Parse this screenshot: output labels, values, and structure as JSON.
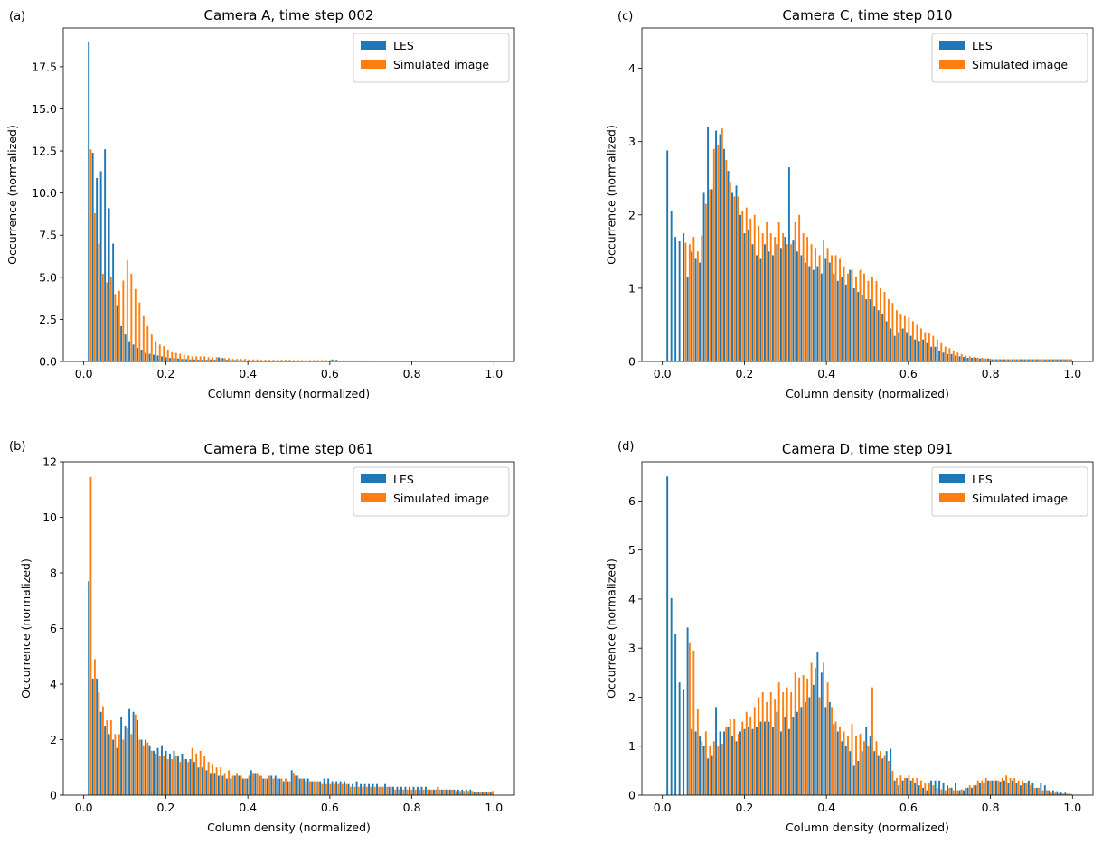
{
  "colors": {
    "les": "#1f77b4",
    "sim": "#ff7f0e",
    "axis": "#000000"
  },
  "chart_data": [
    {
      "type": "bar",
      "panel_label": "(a)",
      "title": "Camera A, time step 002",
      "xlabel": "Column density (normalized)",
      "ylabel": "Occurrence (normalized)",
      "xlim": [
        -0.05,
        1.05
      ],
      "ylim": [
        0,
        19.8
      ],
      "xticks": [
        0.0,
        0.2,
        0.4,
        0.6,
        0.8,
        1.0
      ],
      "xtick_labels": [
        "0.0",
        "0.2",
        "0.4",
        "0.6",
        "0.8",
        "1.0"
      ],
      "yticks": [
        0,
        2.5,
        5.0,
        7.5,
        10.0,
        12.5,
        15.0,
        17.5
      ],
      "ytick_labels": [
        "0.0",
        "2.5",
        "5.0",
        "7.5",
        "10.0",
        "12.5",
        "15.0",
        "17.5"
      ],
      "legend_position": "top-right",
      "x_start": 0.01,
      "x_end": 1.0,
      "bins": 100,
      "series": [
        {
          "name": "LES",
          "values": [
            19.0,
            12.4,
            10.9,
            11.3,
            12.6,
            9.1,
            7.0,
            3.3,
            2.1,
            1.6,
            1.2,
            1.0,
            0.8,
            0.7,
            0.5,
            0.45,
            0.4,
            0.35,
            0.3,
            0.25,
            0.2,
            0.2,
            0.18,
            0.15,
            0.14,
            0.12,
            0.12,
            0.11,
            0.1,
            0.1,
            0.12,
            0.1,
            0.25,
            0.2,
            0.1,
            0.08,
            0.08,
            0.07,
            0.07,
            0.06,
            0.06,
            0.06,
            0.05,
            0.05,
            0.05,
            0.04,
            0.04,
            0.04,
            0.04,
            0.03,
            0.03,
            0.03,
            0.03,
            0.03,
            0.03,
            0.03,
            0.03,
            0.02,
            0.02,
            0.02,
            0.12,
            0.1,
            0.02,
            0.02,
            0.02,
            0.02,
            0.02,
            0.02,
            0.02,
            0.02,
            0.02,
            0.02,
            0.02,
            0.02,
            0.02,
            0.02,
            0.02,
            0.02,
            0.02,
            0.02,
            0.02,
            0.02,
            0.02,
            0.02,
            0.02,
            0.02,
            0.02,
            0.02,
            0.02,
            0.02,
            0.02,
            0.02,
            0.02,
            0.02,
            0.02,
            0.02,
            0.02,
            0.02,
            0.02,
            0.02
          ]
        },
        {
          "name": "Simulated image",
          "values": [
            12.6,
            8.8,
            7.0,
            5.2,
            4.7,
            5.0,
            4.0,
            4.2,
            4.8,
            6.0,
            5.2,
            4.3,
            3.5,
            2.7,
            2.1,
            1.6,
            1.2,
            1.0,
            0.9,
            0.7,
            0.6,
            0.5,
            0.45,
            0.4,
            0.35,
            0.3,
            0.3,
            0.3,
            0.3,
            0.25,
            0.25,
            0.25,
            0.2,
            0.2,
            0.2,
            0.15,
            0.15,
            0.15,
            0.15,
            0.12,
            0.12,
            0.12,
            0.1,
            0.1,
            0.1,
            0.1,
            0.1,
            0.1,
            0.1,
            0.1,
            0.08,
            0.08,
            0.08,
            0.08,
            0.08,
            0.08,
            0.08,
            0.08,
            0.08,
            0.08,
            0.06,
            0.06,
            0.06,
            0.06,
            0.06,
            0.06,
            0.06,
            0.06,
            0.06,
            0.06,
            0.05,
            0.05,
            0.05,
            0.05,
            0.05,
            0.05,
            0.05,
            0.05,
            0.05,
            0.05,
            0.05,
            0.05,
            0.05,
            0.05,
            0.05,
            0.05,
            0.05,
            0.05,
            0.05,
            0.05,
            0.05,
            0.05,
            0.05,
            0.05,
            0.05,
            0.05,
            0.05,
            0.05,
            0.05,
            0.05
          ]
        }
      ]
    },
    {
      "type": "bar",
      "panel_label": "(c)",
      "title": "Camera C, time step 010",
      "xlabel": "Column density (normalized)",
      "ylabel": "Occurrence (normalized)",
      "xlim": [
        -0.05,
        1.05
      ],
      "ylim": [
        0,
        4.55
      ],
      "xticks": [
        0.0,
        0.2,
        0.4,
        0.6,
        0.8,
        1.0
      ],
      "xtick_labels": [
        "0.0",
        "0.2",
        "0.4",
        "0.6",
        "0.8",
        "1.0"
      ],
      "yticks": [
        0,
        1,
        2,
        3,
        4
      ],
      "ytick_labels": [
        "0",
        "1",
        "2",
        "3",
        "4"
      ],
      "legend_position": "top-right",
      "x_start": 0.01,
      "x_end": 1.0,
      "bins": 100,
      "series": [
        {
          "name": "LES",
          "values": [
            2.88,
            2.05,
            1.7,
            1.64,
            1.75,
            1.15,
            1.5,
            1.4,
            1.35,
            2.3,
            3.2,
            2.35,
            3.15,
            3.1,
            2.9,
            2.6,
            2.3,
            2.4,
            2.0,
            1.75,
            1.8,
            1.6,
            1.45,
            1.4,
            1.6,
            1.5,
            1.45,
            1.6,
            1.55,
            1.7,
            2.65,
            1.65,
            1.5,
            1.45,
            1.35,
            1.3,
            1.25,
            1.3,
            1.2,
            1.4,
            1.35,
            1.2,
            1.1,
            1.15,
            1.05,
            1.25,
            1.0,
            0.95,
            0.9,
            0.85,
            0.85,
            0.75,
            0.7,
            0.65,
            0.55,
            0.45,
            0.35,
            0.4,
            0.45,
            0.4,
            0.35,
            0.3,
            0.28,
            0.3,
            0.25,
            0.2,
            0.2,
            0.15,
            0.12,
            0.1,
            0.1,
            0.08,
            0.07,
            0.06,
            0.05,
            0.05,
            0.05,
            0.04,
            0.04,
            0.04,
            0.03,
            0.03,
            0.03,
            0.03,
            0.03,
            0.03,
            0.03,
            0.03,
            0.03,
            0.03,
            0.03,
            0.03,
            0.03,
            0.03,
            0.03,
            0.03,
            0.03,
            0.03,
            0.03,
            0.03
          ]
        },
        {
          "name": "Simulated image",
          "values": [
            0.0,
            0.0,
            0.0,
            0.0,
            1.62,
            1.6,
            1.7,
            1.5,
            1.72,
            2.15,
            2.35,
            2.9,
            2.95,
            3.18,
            2.75,
            2.45,
            2.25,
            2.25,
            2.05,
            2.1,
            1.95,
            2.0,
            1.85,
            1.75,
            1.9,
            1.75,
            1.7,
            1.9,
            1.75,
            1.6,
            1.6,
            1.9,
            2.0,
            1.75,
            1.7,
            1.6,
            1.55,
            1.45,
            1.65,
            1.55,
            1.45,
            1.45,
            1.4,
            1.3,
            1.2,
            1.25,
            1.15,
            1.25,
            1.2,
            1.1,
            1.15,
            1.1,
            1.0,
            0.95,
            0.85,
            0.8,
            0.7,
            0.65,
            0.62,
            0.6,
            0.55,
            0.5,
            0.45,
            0.4,
            0.38,
            0.35,
            0.3,
            0.25,
            0.2,
            0.18,
            0.15,
            0.12,
            0.1,
            0.08,
            0.07,
            0.06,
            0.05,
            0.05,
            0.04,
            0.04,
            0.03,
            0.03,
            0.03,
            0.03,
            0.03,
            0.03,
            0.03,
            0.03,
            0.03,
            0.03,
            0.03,
            0.03,
            0.03,
            0.03,
            0.03,
            0.03,
            0.03,
            0.03,
            0.03,
            0.03
          ]
        }
      ]
    },
    {
      "type": "bar",
      "panel_label": "(b)",
      "title": "Camera B, time step 061",
      "xlabel": "Column density (normalized)",
      "ylabel": "Occurrence (normalized)",
      "xlim": [
        -0.05,
        1.05
      ],
      "ylim": [
        0,
        12
      ],
      "xticks": [
        0.0,
        0.2,
        0.4,
        0.6,
        0.8,
        1.0
      ],
      "xtick_labels": [
        "0.0",
        "0.2",
        "0.4",
        "0.6",
        "0.8",
        "1.0"
      ],
      "yticks": [
        0,
        2,
        4,
        6,
        8,
        10,
        12
      ],
      "ytick_labels": [
        "0",
        "2",
        "4",
        "6",
        "8",
        "10",
        "12"
      ],
      "legend_position": "top-right",
      "x_start": 0.01,
      "x_end": 1.0,
      "bins": 100,
      "series": [
        {
          "name": "LES",
          "values": [
            7.7,
            4.2,
            4.2,
            3.0,
            2.5,
            2.2,
            2.0,
            1.7,
            2.8,
            2.5,
            3.1,
            3.0,
            2.7,
            2.0,
            2.0,
            1.8,
            1.6,
            1.7,
            1.8,
            1.6,
            1.5,
            1.6,
            1.4,
            1.5,
            1.3,
            1.3,
            1.2,
            1.0,
            1.0,
            0.9,
            0.8,
            0.8,
            0.7,
            0.7,
            0.6,
            0.6,
            0.7,
            0.7,
            0.6,
            0.6,
            0.9,
            0.8,
            0.7,
            0.6,
            0.6,
            0.7,
            0.7,
            0.6,
            0.5,
            0.5,
            0.9,
            0.7,
            0.6,
            0.6,
            0.6,
            0.5,
            0.5,
            0.5,
            0.6,
            0.6,
            0.5,
            0.5,
            0.5,
            0.5,
            0.4,
            0.4,
            0.5,
            0.4,
            0.4,
            0.4,
            0.4,
            0.4,
            0.3,
            0.4,
            0.3,
            0.3,
            0.3,
            0.3,
            0.3,
            0.3,
            0.3,
            0.3,
            0.3,
            0.3,
            0.2,
            0.2,
            0.3,
            0.2,
            0.2,
            0.2,
            0.2,
            0.2,
            0.2,
            0.2,
            0.2,
            0.1,
            0.1,
            0.1,
            0.1,
            0.1
          ]
        },
        {
          "name": "Simulated image",
          "values": [
            11.45,
            4.9,
            3.7,
            3.2,
            2.7,
            2.7,
            2.2,
            2.2,
            2.0,
            2.4,
            2.2,
            2.9,
            2.0,
            1.8,
            1.9,
            1.6,
            1.5,
            1.4,
            1.4,
            1.3,
            1.3,
            1.4,
            1.2,
            1.3,
            1.2,
            1.7,
            1.5,
            1.6,
            1.4,
            1.2,
            1.1,
            1.0,
            1.0,
            0.8,
            0.9,
            0.7,
            0.8,
            0.7,
            0.6,
            0.7,
            0.8,
            0.8,
            0.7,
            0.6,
            0.7,
            0.6,
            0.6,
            0.6,
            0.6,
            0.5,
            0.8,
            0.7,
            0.6,
            0.5,
            0.5,
            0.5,
            0.5,
            0.4,
            0.4,
            0.4,
            0.4,
            0.4,
            0.4,
            0.4,
            0.3,
            0.3,
            0.3,
            0.3,
            0.3,
            0.3,
            0.3,
            0.3,
            0.3,
            0.3,
            0.3,
            0.2,
            0.2,
            0.2,
            0.2,
            0.2,
            0.2,
            0.2,
            0.2,
            0.2,
            0.2,
            0.2,
            0.2,
            0.2,
            0.2,
            0.2,
            0.15,
            0.15,
            0.15,
            0.15,
            0.15,
            0.1,
            0.1,
            0.1,
            0.1,
            0.15
          ]
        }
      ]
    },
    {
      "type": "bar",
      "panel_label": "(d)",
      "title": "Camera D, time step 091",
      "xlabel": "Column density (normalized)",
      "ylabel": "Occurrence (normalized)",
      "xlim": [
        -0.05,
        1.05
      ],
      "ylim": [
        0,
        6.8
      ],
      "xticks": [
        0.0,
        0.2,
        0.4,
        0.6,
        0.8,
        1.0
      ],
      "xtick_labels": [
        "0.0",
        "0.2",
        "0.4",
        "0.6",
        "0.8",
        "1.0"
      ],
      "yticks": [
        0,
        1,
        2,
        3,
        4,
        5,
        6
      ],
      "ytick_labels": [
        "0",
        "1",
        "2",
        "3",
        "4",
        "5",
        "6"
      ],
      "legend_position": "top-right",
      "x_start": 0.01,
      "x_end": 1.0,
      "bins": 100,
      "series": [
        {
          "name": "LES",
          "values": [
            6.5,
            4.02,
            3.28,
            2.3,
            2.15,
            3.42,
            1.35,
            1.3,
            1.2,
            1.0,
            0.75,
            0.8,
            1.8,
            1.3,
            1.3,
            1.4,
            1.2,
            1.1,
            1.3,
            1.35,
            1.4,
            1.35,
            1.4,
            1.5,
            1.5,
            1.5,
            1.4,
            1.7,
            1.3,
            1.6,
            1.35,
            1.6,
            1.7,
            1.8,
            1.9,
            2.0,
            2.25,
            2.92,
            2.5,
            1.8,
            1.9,
            1.45,
            1.3,
            1.1,
            1.0,
            0.9,
            0.6,
            0.7,
            0.9,
            1.4,
            1.2,
            0.9,
            0.8,
            0.75,
            0.9,
            0.95,
            0.3,
            0.2,
            0.3,
            0.35,
            0.3,
            0.25,
            0.2,
            0.15,
            0.1,
            0.3,
            0.3,
            0.3,
            0.25,
            0.2,
            0.15,
            0.25,
            0.1,
            0.1,
            0.15,
            0.15,
            0.2,
            0.25,
            0.25,
            0.3,
            0.3,
            0.3,
            0.28,
            0.3,
            0.25,
            0.3,
            0.25,
            0.2,
            0.25,
            0.3,
            0.25,
            0.15,
            0.25,
            0.2,
            0.1,
            0.1,
            0.08,
            0.05,
            0.05,
            0.03
          ]
        },
        {
          "name": "Simulated image",
          "values": [
            0.0,
            0.0,
            0.0,
            0.0,
            0.0,
            3.1,
            2.95,
            1.75,
            1.1,
            1.3,
            1.0,
            1.1,
            1.0,
            1.05,
            1.4,
            1.55,
            1.55,
            1.25,
            1.5,
            1.7,
            1.6,
            1.8,
            2.0,
            2.1,
            1.9,
            2.1,
            1.95,
            2.3,
            2.1,
            2.2,
            2.1,
            2.5,
            2.4,
            2.45,
            2.38,
            2.7,
            2.6,
            2.0,
            2.7,
            2.3,
            1.8,
            1.5,
            1.4,
            1.3,
            1.2,
            1.45,
            1.2,
            1.25,
            1.1,
            1.0,
            2.2,
            1.1,
            0.9,
            0.8,
            0.7,
            0.5,
            0.35,
            0.4,
            0.35,
            0.4,
            0.35,
            0.35,
            0.3,
            0.25,
            0.25,
            0.2,
            0.15,
            0.12,
            0.1,
            0.15,
            0.1,
            0.1,
            0.12,
            0.15,
            0.2,
            0.2,
            0.3,
            0.3,
            0.35,
            0.3,
            0.3,
            0.3,
            0.35,
            0.4,
            0.35,
            0.35,
            0.3,
            0.3,
            0.25,
            0.2,
            0.15,
            0.15,
            0.1,
            0.1,
            0.05,
            0.05,
            0.04,
            0.03,
            0.03,
            0.02
          ]
        }
      ]
    }
  ]
}
